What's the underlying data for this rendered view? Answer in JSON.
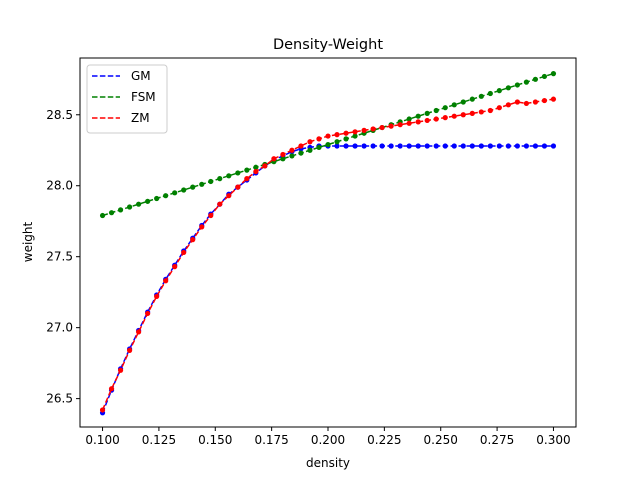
{
  "chart_data": {
    "type": "line",
    "title": "Density-Weight",
    "xlabel": "density",
    "ylabel": "weight",
    "xlim": [
      0.09,
      0.31
    ],
    "ylim": [
      26.3,
      28.9
    ],
    "xticks": [
      0.1,
      0.125,
      0.15,
      0.175,
      0.2,
      0.225,
      0.25,
      0.275,
      0.3
    ],
    "xtick_labels": [
      "0.100",
      "0.125",
      "0.150",
      "0.175",
      "0.200",
      "0.225",
      "0.250",
      "0.275",
      "0.300"
    ],
    "yticks": [
      26.5,
      27.0,
      27.5,
      28.0,
      28.5
    ],
    "ytick_labels": [
      "26.5",
      "27.0",
      "27.5",
      "28.0",
      "28.5"
    ],
    "grid": false,
    "legend_position": "top-left",
    "series": [
      {
        "name": "GM",
        "color": "#0000ff",
        "line_style": "dashed",
        "x": [
          0.1,
          0.104,
          0.108,
          0.112,
          0.116,
          0.12,
          0.124,
          0.128,
          0.132,
          0.136,
          0.14,
          0.144,
          0.148,
          0.152,
          0.156,
          0.16,
          0.164,
          0.168,
          0.172,
          0.176,
          0.18,
          0.184,
          0.188,
          0.192,
          0.196,
          0.2,
          0.204,
          0.208,
          0.212,
          0.216,
          0.22,
          0.224,
          0.228,
          0.232,
          0.236,
          0.24,
          0.244,
          0.248,
          0.252,
          0.256,
          0.26,
          0.264,
          0.268,
          0.272,
          0.276,
          0.28,
          0.284,
          0.288,
          0.292,
          0.296,
          0.3
        ],
        "y": [
          26.4,
          26.56,
          26.71,
          26.85,
          26.98,
          27.11,
          27.23,
          27.34,
          27.44,
          27.54,
          27.63,
          27.72,
          27.8,
          27.87,
          27.94,
          27.99,
          28.04,
          28.09,
          28.14,
          28.18,
          28.21,
          28.24,
          28.26,
          28.27,
          28.28,
          28.28,
          28.28,
          28.28,
          28.28,
          28.28,
          28.28,
          28.28,
          28.28,
          28.28,
          28.28,
          28.28,
          28.28,
          28.28,
          28.28,
          28.28,
          28.28,
          28.28,
          28.28,
          28.28,
          28.28,
          28.28,
          28.28,
          28.28,
          28.28,
          28.28,
          28.28
        ]
      },
      {
        "name": "FSM",
        "color": "#008000",
        "line_style": "dashed",
        "x": [
          0.1,
          0.104,
          0.108,
          0.112,
          0.116,
          0.12,
          0.124,
          0.128,
          0.132,
          0.136,
          0.14,
          0.144,
          0.148,
          0.152,
          0.156,
          0.16,
          0.164,
          0.168,
          0.172,
          0.176,
          0.18,
          0.184,
          0.188,
          0.192,
          0.196,
          0.2,
          0.204,
          0.208,
          0.212,
          0.216,
          0.22,
          0.224,
          0.228,
          0.232,
          0.236,
          0.24,
          0.244,
          0.248,
          0.252,
          0.256,
          0.26,
          0.264,
          0.268,
          0.272,
          0.276,
          0.28,
          0.284,
          0.288,
          0.292,
          0.296,
          0.3
        ],
        "y": [
          27.79,
          27.81,
          27.83,
          27.85,
          27.87,
          27.89,
          27.91,
          27.93,
          27.95,
          27.97,
          27.99,
          28.01,
          28.03,
          28.05,
          28.07,
          28.09,
          28.11,
          28.13,
          28.15,
          28.17,
          28.19,
          28.21,
          28.23,
          28.25,
          28.27,
          28.29,
          28.31,
          28.33,
          28.35,
          28.37,
          28.39,
          28.41,
          28.43,
          28.45,
          28.47,
          28.49,
          28.51,
          28.53,
          28.55,
          28.57,
          28.59,
          28.61,
          28.63,
          28.65,
          28.67,
          28.69,
          28.71,
          28.73,
          28.75,
          28.77,
          28.79
        ]
      },
      {
        "name": "ZM",
        "color": "#ff0000",
        "line_style": "dashed",
        "x": [
          0.1,
          0.104,
          0.108,
          0.112,
          0.116,
          0.12,
          0.124,
          0.128,
          0.132,
          0.136,
          0.14,
          0.144,
          0.148,
          0.152,
          0.156,
          0.16,
          0.164,
          0.168,
          0.172,
          0.176,
          0.18,
          0.184,
          0.188,
          0.192,
          0.196,
          0.2,
          0.204,
          0.208,
          0.212,
          0.216,
          0.22,
          0.224,
          0.228,
          0.232,
          0.236,
          0.24,
          0.244,
          0.248,
          0.252,
          0.256,
          0.26,
          0.264,
          0.268,
          0.272,
          0.276,
          0.28,
          0.284,
          0.288,
          0.292,
          0.296,
          0.3
        ],
        "y": [
          26.42,
          26.57,
          26.7,
          26.84,
          26.97,
          27.1,
          27.22,
          27.33,
          27.43,
          27.53,
          27.62,
          27.71,
          27.79,
          27.87,
          27.93,
          27.99,
          28.05,
          28.1,
          28.14,
          28.19,
          28.22,
          28.25,
          28.28,
          28.31,
          28.33,
          28.35,
          28.36,
          28.37,
          28.38,
          28.39,
          28.4,
          28.41,
          28.42,
          28.43,
          28.44,
          28.45,
          28.46,
          28.47,
          28.48,
          28.49,
          28.5,
          28.51,
          28.52,
          28.53,
          28.55,
          28.57,
          28.59,
          28.58,
          28.59,
          28.6,
          28.61
        ]
      }
    ]
  }
}
